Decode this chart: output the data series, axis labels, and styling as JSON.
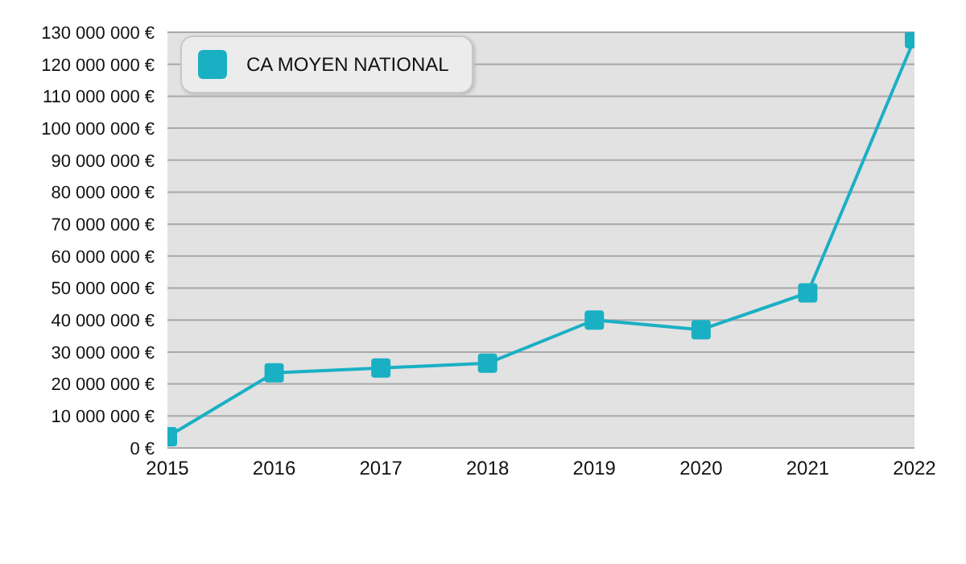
{
  "chart_data": {
    "type": "line",
    "x": [
      2015,
      2016,
      2017,
      2018,
      2019,
      2020,
      2021,
      2022
    ],
    "series": [
      {
        "name": "CA MOYEN NATIONAL",
        "color": "#1ab0c4",
        "values": [
          3500000,
          23500000,
          25000000,
          26500000,
          40000000,
          37000000,
          48500000,
          128000000
        ]
      }
    ],
    "xlim": [
      2015,
      2022
    ],
    "xticks": [
      2015,
      2016,
      2017,
      2018,
      2019,
      2020,
      2021,
      2022
    ],
    "ylim": [
      0,
      130000000
    ],
    "yticks": [
      {
        "value": 0,
        "label": "0 €"
      },
      {
        "value": 10000000,
        "label": "10 000 000 €"
      },
      {
        "value": 20000000,
        "label": "20 000 000 €"
      },
      {
        "value": 30000000,
        "label": "30 000 000 €"
      },
      {
        "value": 40000000,
        "label": "40 000 000 €"
      },
      {
        "value": 50000000,
        "label": "50 000 000 €"
      },
      {
        "value": 60000000,
        "label": "60 000 000 €"
      },
      {
        "value": 70000000,
        "label": "70 000 000 €"
      },
      {
        "value": 80000000,
        "label": "80 000 000 €"
      },
      {
        "value": 90000000,
        "label": "90 000 000 €"
      },
      {
        "value": 100000000,
        "label": "100 000 000 €"
      },
      {
        "value": 110000000,
        "label": "110 000 000 €"
      },
      {
        "value": 120000000,
        "label": "120 000 000 €"
      },
      {
        "value": 130000000,
        "label": "130 000 000 €"
      }
    ],
    "grid": "y",
    "legend": "top left",
    "marker": "square",
    "line_style": "solid"
  }
}
